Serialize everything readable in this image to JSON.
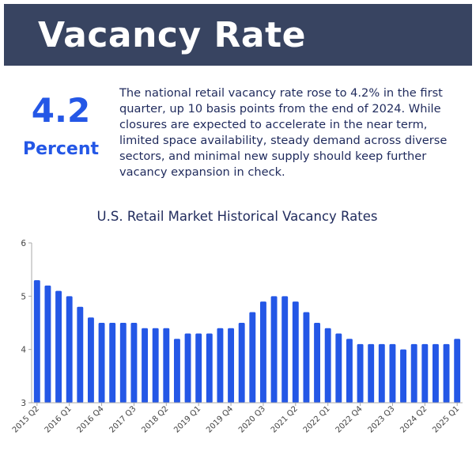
{
  "header": {
    "title": "Vacancy Rate"
  },
  "highlight": {
    "value": "4.2",
    "unit": "Percent"
  },
  "summary": "The national retail vacancy rate rose to 4.2% in the first quarter, up 10 basis points from the end of 2024. While closures are expected to accelerate in the near term, limited space availability, steady demand across diverse sectors, and minimal new supply should keep further vacancy expansion in check.",
  "colors": {
    "header_bg": "#384461",
    "accent": "#2457e6",
    "bar": "#2457e6",
    "text": "#1f2a5c"
  },
  "chart_data": {
    "type": "bar",
    "title": "U.S. Retail Market Historical Vacancy Rates",
    "xlabel": "",
    "ylabel": "",
    "ylim": [
      3,
      6
    ],
    "yticks": [
      3,
      4,
      5,
      6
    ],
    "grid": false,
    "categories": [
      "2015 Q2",
      "2015 Q3",
      "2015 Q4",
      "2016 Q1",
      "2016 Q2",
      "2016 Q3",
      "2016 Q4",
      "2017 Q1",
      "2017 Q2",
      "2017 Q3",
      "2017 Q4",
      "2018 Q1",
      "2018 Q2",
      "2018 Q3",
      "2018 Q4",
      "2019 Q1",
      "2019 Q2",
      "2019 Q3",
      "2019 Q4",
      "2020 Q1",
      "2020 Q2",
      "2020 Q3",
      "2020 Q4",
      "2021 Q1",
      "2021 Q2",
      "2021 Q3",
      "2021 Q4",
      "2022 Q1",
      "2022 Q2",
      "2022 Q3",
      "2022 Q4",
      "2023 Q1",
      "2023 Q2",
      "2023 Q3",
      "2023 Q4",
      "2024 Q1",
      "2024 Q2",
      "2024 Q3",
      "2024 Q4",
      "2025 Q1"
    ],
    "values": [
      5.3,
      5.2,
      5.1,
      5.0,
      4.8,
      4.6,
      4.5,
      4.5,
      4.5,
      4.5,
      4.4,
      4.4,
      4.4,
      4.2,
      4.3,
      4.3,
      4.3,
      4.4,
      4.4,
      4.5,
      4.7,
      4.9,
      5.0,
      5.0,
      4.9,
      4.7,
      4.5,
      4.4,
      4.3,
      4.2,
      4.1,
      4.1,
      4.1,
      4.1,
      4.0,
      4.1,
      4.1,
      4.1,
      4.1,
      4.2
    ],
    "tick_labels": [
      "2015 Q2",
      "2016 Q1",
      "2016 Q4",
      "2017 Q3",
      "2018 Q2",
      "2019 Q1",
      "2019 Q4",
      "2020 Q3",
      "2021 Q2",
      "2022 Q1",
      "2022 Q4",
      "2023 Q3",
      "2024 Q2",
      "2025 Q1"
    ]
  }
}
